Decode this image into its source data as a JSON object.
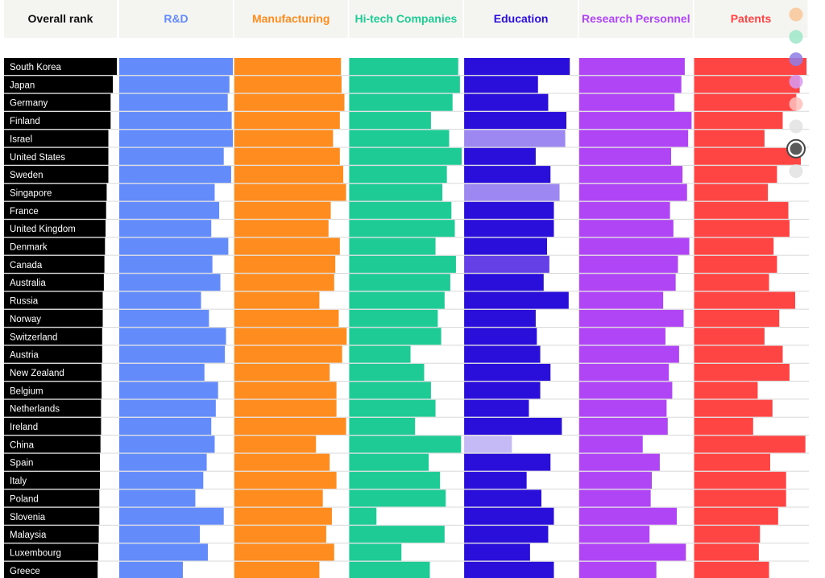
{
  "chart_data": {
    "type": "bar",
    "rank_header": "Overall rank",
    "countries": [
      "South Korea",
      "Japan",
      "Germany",
      "Finland",
      "Israel",
      "United States",
      "Sweden",
      "Singapore",
      "France",
      "United Kingdom",
      "Denmark",
      "Canada",
      "Australia",
      "Russia",
      "Norway",
      "Switzerland",
      "Austria",
      "New Zealand",
      "Belgium",
      "Netherlands",
      "Ireland",
      "China",
      "Spain",
      "Italy",
      "Poland",
      "Slovenia",
      "Malaysia",
      "Luxembourg",
      "Greece"
    ],
    "overall_score": [
      100,
      96.5,
      94.5,
      94.5,
      92.5,
      92.5,
      92.5,
      91.0,
      90.5,
      90.0,
      89.5,
      89.0,
      88.5,
      87.5,
      87.5,
      87.0,
      87.0,
      86.5,
      86.5,
      86.0,
      86.0,
      85.5,
      85.0,
      85.0,
      84.5,
      84.5,
      84.0,
      83.5,
      83.0
    ],
    "series": [
      {
        "name": "R&D",
        "color": "#638BFA",
        "values": [
          100,
          97,
          95.5,
          99,
          100,
          92,
          98.5,
          84,
          88,
          81,
          96,
          82,
          89,
          72,
          79,
          94,
          93,
          75,
          87,
          85,
          81,
          84,
          77,
          74,
          67,
          92,
          71,
          78,
          56
        ]
      },
      {
        "name": "Manufacturing",
        "color": "#FF8C1E",
        "values": [
          94,
          94.5,
          97,
          93,
          87,
          93,
          96,
          98.5,
          85,
          83,
          93,
          89,
          88,
          75,
          92,
          99,
          95,
          84,
          90,
          90,
          98.5,
          72,
          84,
          90,
          78,
          86,
          81,
          88,
          75
        ]
      },
      {
        "name": "Hi-tech Companies",
        "color": "#1ECB95",
        "values": [
          96,
          97.5,
          91,
          72,
          88,
          99,
          86,
          82,
          90,
          93,
          76,
          94,
          89,
          84,
          78,
          81,
          54,
          66,
          72,
          76,
          58,
          98.5,
          70,
          80,
          85,
          24,
          84,
          46,
          71
        ]
      },
      {
        "name": "Education",
        "color": "#2A0EDA",
        "values": [
          93,
          65,
          74,
          90,
          89,
          63,
          76,
          84,
          79,
          79,
          73,
          75,
          70,
          92,
          63,
          64,
          67,
          76,
          67,
          57,
          86,
          42,
          76,
          55,
          68,
          79,
          74,
          58,
          79
        ],
        "shades": [
          "#2A0EDA",
          "#2A0EDA",
          "#2A0EDA",
          "#2A0EDA",
          "#9D88F2",
          "#2A0EDA",
          "#2A0EDA",
          "#9D88F2",
          "#2A0EDA",
          "#2A0EDA",
          "#2A0EDA",
          "#6440E6",
          "#2A0EDA",
          "#2A0EDA",
          "#2A0EDA",
          "#2A0EDA",
          "#2A0EDA",
          "#2A0EDA",
          "#2A0EDA",
          "#2A0EDA",
          "#2A0EDA",
          "#C5BAF5",
          "#2A0EDA",
          "#2A0EDA",
          "#2A0EDA",
          "#2A0EDA",
          "#2A0EDA",
          "#2A0EDA",
          "#2A0EDA"
        ]
      },
      {
        "name": "Research Personnel",
        "color": "#B045F5",
        "values": [
          93,
          90,
          84,
          99,
          96,
          81,
          91,
          95,
          80,
          83,
          97,
          87,
          85,
          74,
          92,
          76,
          88,
          79,
          82,
          77,
          78,
          56,
          71,
          64,
          63,
          86,
          62,
          94,
          68
        ]
      },
      {
        "name": "Patents",
        "color": "#FF4444",
        "values": [
          99,
          93,
          90,
          78,
          62,
          94,
          73,
          65,
          83,
          84,
          70,
          73,
          66,
          89,
          75,
          62,
          78,
          84,
          56,
          69,
          52,
          98,
          67,
          81,
          81,
          74,
          58,
          57,
          66
        ]
      }
    ],
    "legend_dots": [
      "#F9C79A",
      "#9DE6C9",
      "#8E7EE6",
      "#D79BF0",
      "#FFC0BC",
      "#E2E2E2",
      "#5A5A5A",
      "#E2E2E2"
    ],
    "xlim": [
      0,
      100
    ]
  }
}
